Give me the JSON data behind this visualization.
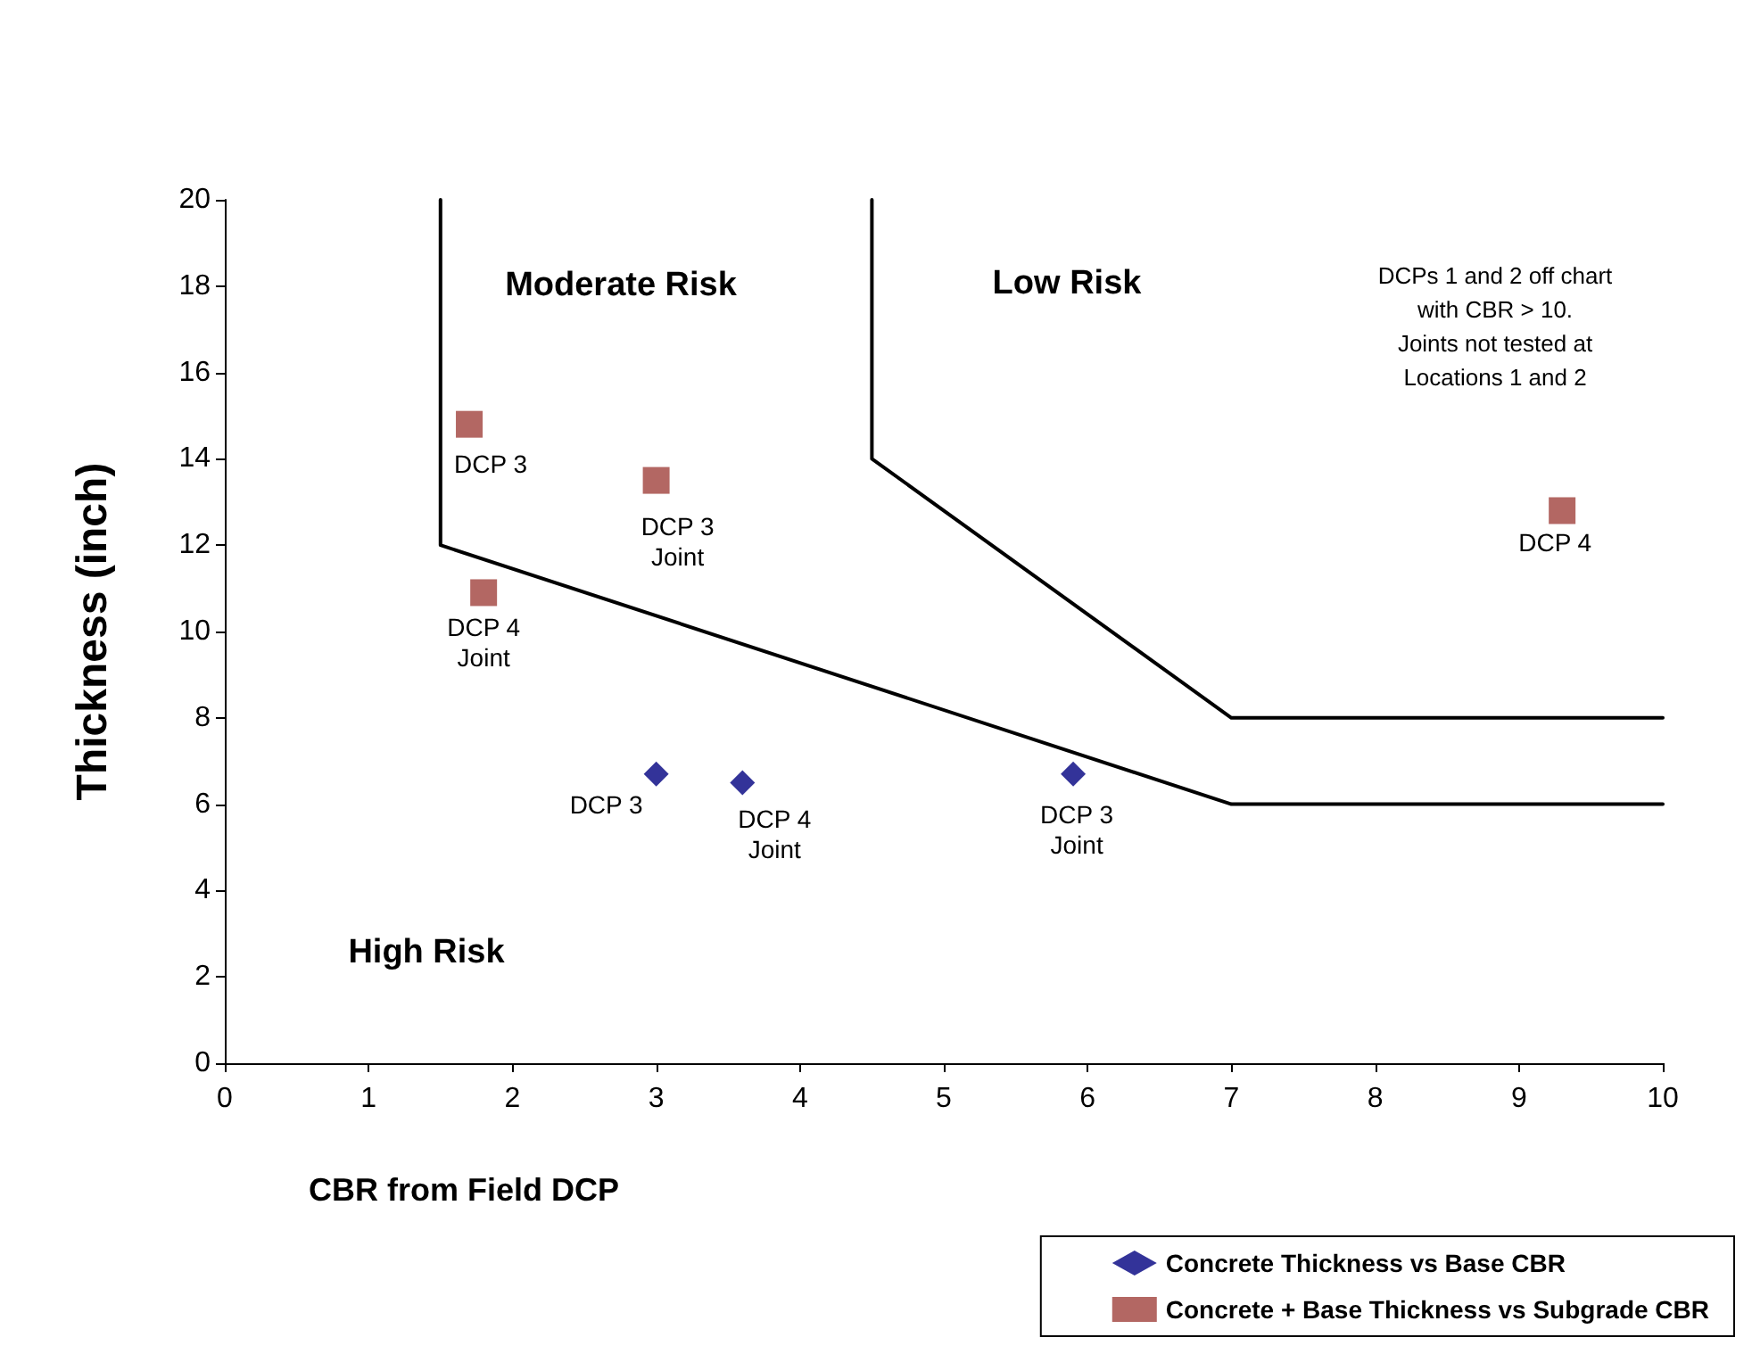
{
  "chart_data": {
    "type": "scatter",
    "xlabel": "CBR from Field DCP",
    "ylabel": "Thickness (inch)",
    "xlim": [
      0,
      10
    ],
    "xticks": [
      0,
      1,
      2,
      3,
      4,
      5,
      6,
      7,
      8,
      9,
      10
    ],
    "ylim": [
      0,
      20
    ],
    "yticks": [
      0,
      2,
      4,
      6,
      8,
      10,
      12,
      14,
      16,
      18,
      20
    ],
    "grid": false,
    "legend": "bottom right",
    "series": [
      {
        "name": "Concrete Thickness vs Base CBR",
        "color": "#000080",
        "marker": "diamond",
        "x": [
          3.0,
          3.6,
          5.9
        ],
        "values": [
          6.7,
          6.5,
          6.7
        ]
      },
      {
        "name": "Concrete + Base Thickness vs Subgrade CBR",
        "color": "#a0413c",
        "marker": "square",
        "x": [
          1.7,
          3.0,
          1.8,
          9.3
        ],
        "values": [
          14.8,
          13.5,
          10.9,
          12.8
        ]
      },
      {
        "type": "line",
        "color": "#000000",
        "marker": "none",
        "x": [
          1.5,
          1.5,
          7,
          10
        ],
        "values": [
          20,
          12,
          6,
          6
        ]
      },
      {
        "type": "line",
        "color": "#000000",
        "marker": "none",
        "x": [
          4.5,
          4.5,
          7,
          10
        ],
        "values": [
          20,
          14,
          8,
          8
        ]
      }
    ],
    "annotations": [
      {
        "text": "DCP 3",
        "x": 1.7,
        "y": 14.8
      },
      {
        "text": "DCP 3\nJoint",
        "x": 3.0,
        "y": 13.5
      },
      {
        "text": "DCP 4\nJoint",
        "x": 1.8,
        "y": 10.9
      },
      {
        "text": "DCP 4",
        "x": 9.3,
        "y": 12.8
      },
      {
        "text": "DCP 3",
        "x": 3.0,
        "y": 6.7
      },
      {
        "text": "DCP 4\nJoint",
        "x": 3.6,
        "y": 6.5
      },
      {
        "text": "DCP 3\nJoint",
        "x": 5.9,
        "y": 6.7
      },
      "Moderate Risk",
      "Low Risk",
      "High Risk",
      "DCPs 1 and 2 off chart\nwith CBR > 10.\nJoints not tested at\nLocations 1 and 2"
    ]
  }
}
